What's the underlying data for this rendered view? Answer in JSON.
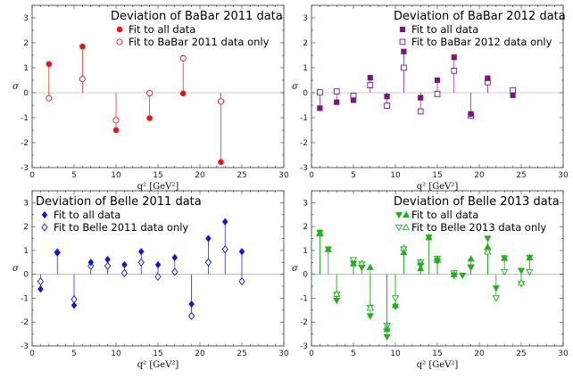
{
  "chart_data": [
    {
      "type": "scatter",
      "title": "Deviation of BaBar 2011 data",
      "color": "#e8161b",
      "marker": "circle",
      "xlabel": "q² [GeV²]",
      "ylabel": "σ",
      "xlim": [
        0,
        30
      ],
      "ylim": [
        -3,
        3.5
      ],
      "xticks": [
        0,
        5,
        10,
        15,
        20,
        25,
        30
      ],
      "yticks": [
        -3,
        -2,
        -1,
        0,
        1,
        2,
        3
      ],
      "legend": [
        "Fit to all data",
        "Fit to BaBar 2011 data only"
      ],
      "x": [
        2,
        6,
        10,
        14,
        18,
        22.5
      ],
      "series": [
        {
          "name": "Fit to all data",
          "values": [
            1.15,
            1.85,
            -1.5,
            -1.02,
            -0.03,
            -2.78
          ]
        },
        {
          "name": "Fit to BaBar 2011 data only",
          "values": [
            -0.22,
            0.55,
            -1.1,
            -0.02,
            1.38,
            -0.35
          ]
        }
      ]
    },
    {
      "type": "scatter",
      "title": "Deviation of BaBar 2012 data",
      "color": "#7d1480",
      "marker": "square",
      "xlabel": "q² [GeV²]",
      "ylabel": "σ",
      "xlim": [
        0,
        30
      ],
      "ylim": [
        -3,
        3.5
      ],
      "xticks": [
        0,
        5,
        10,
        15,
        20,
        25,
        30
      ],
      "yticks": [
        -3,
        -2,
        -1,
        0,
        1,
        2,
        3
      ],
      "legend": [
        "Fit to all data",
        "Fit to BaBar 2012 data only"
      ],
      "x": [
        1,
        3,
        5,
        7,
        9,
        11,
        13,
        15,
        17,
        19,
        21,
        24
      ],
      "series": [
        {
          "name": "Fit to all data",
          "values": [
            -0.62,
            -0.38,
            -0.3,
            0.6,
            -0.15,
            1.65,
            -0.2,
            0.5,
            1.42,
            -0.85,
            0.58,
            -0.1
          ]
        },
        {
          "name": "Fit to BaBar 2012 data only",
          "values": [
            0.02,
            0.05,
            -0.12,
            0.3,
            -0.52,
            1.0,
            -0.75,
            -0.05,
            0.88,
            -0.92,
            0.42,
            0.1
          ]
        }
      ]
    },
    {
      "type": "scatter",
      "title": "Deviation of Belle 2011 data",
      "color": "#1414e0",
      "marker": "diamond",
      "xlabel": "q² [GeV²]",
      "ylabel": "σ",
      "xlim": [
        0,
        30
      ],
      "ylim": [
        -3,
        3.5
      ],
      "xticks": [
        0,
        5,
        10,
        15,
        20,
        25,
        30
      ],
      "yticks": [
        -3,
        -2,
        -1,
        0,
        1,
        2,
        3
      ],
      "legend": [
        "Fit to all data",
        "Fit to Belle 2011 data only"
      ],
      "x": [
        1,
        3,
        5,
        7,
        9,
        11,
        13,
        15,
        17,
        19,
        21,
        23,
        25
      ],
      "series": [
        {
          "name": "Fit to all data",
          "values": [
            -0.62,
            0.9,
            -1.3,
            0.5,
            0.62,
            0.4,
            0.95,
            0.4,
            0.7,
            -1.25,
            1.5,
            2.2,
            0.95
          ]
        },
        {
          "name": "Fit to Belle 2011 data only",
          "values": [
            -0.3,
            0.92,
            -1.05,
            0.35,
            0.35,
            0.05,
            0.5,
            -0.1,
            0.1,
            -1.75,
            0.5,
            1.05,
            -0.3
          ]
        }
      ]
    },
    {
      "type": "scatter",
      "title": "Deviation of Belle 2013 data",
      "color": "#22b022",
      "marker": "triangle",
      "xlabel": "q² [GeV²]",
      "ylabel": "σ",
      "xlim": [
        0,
        30
      ],
      "ylim": [
        -3,
        3.5
      ],
      "xticks": [
        0,
        5,
        10,
        15,
        20,
        25,
        30
      ],
      "yticks": [
        -3,
        -2,
        -1,
        0,
        1,
        2,
        3
      ],
      "legend": [
        "Fit to all data",
        "Fit to Belle 2013 data only"
      ],
      "series": [
        {
          "name": "Fit to all data (down)",
          "x": [
            1,
            2,
            3,
            5,
            6,
            7,
            9,
            10,
            13,
            14,
            15,
            17,
            18,
            19,
            21,
            22,
            23,
            25,
            26
          ],
          "values": [
            1.75,
            1.05,
            -1.1,
            0.45,
            0.28,
            -1.75,
            -2.62,
            -1.35,
            0.38,
            1.55,
            0.55,
            -0.05,
            -0.05,
            0.28,
            1.5,
            -0.58,
            0.68,
            0.15,
            0.7
          ]
        },
        {
          "name": "Fit to all data (up)",
          "x": [
            1,
            2,
            5,
            7,
            9,
            10,
            11,
            13,
            14,
            15,
            17,
            19,
            21,
            23,
            26
          ],
          "values": [
            1.7,
            1.05,
            0.45,
            0.3,
            -2.3,
            -1.3,
            0.92,
            0.25,
            1.55,
            0.65,
            0.0,
            0.65,
            1.15,
            0.68,
            0.7
          ]
        },
        {
          "name": "Fit to Belle 2013 data only (down)",
          "x": [
            3,
            5,
            6,
            7,
            9,
            10,
            11,
            13,
            15,
            17,
            19,
            21,
            22,
            23,
            25,
            26
          ],
          "values": [
            -0.85,
            0.6,
            0.42,
            -1.4,
            -2.15,
            -1.0,
            1.05,
            0.5,
            0.65,
            0.05,
            0.3,
            0.95,
            -1.0,
            0.1,
            -0.4,
            0.1
          ]
        },
        {
          "name": "Fit to Belle 2013 data only (up)",
          "x": [
            1,
            3,
            6,
            7,
            9,
            11,
            13,
            15,
            21,
            25
          ],
          "values": [
            1.75,
            -0.82,
            0.45,
            -1.4,
            -2.2,
            1.1,
            0.5,
            0.6,
            0.95,
            -0.35
          ]
        }
      ]
    }
  ]
}
